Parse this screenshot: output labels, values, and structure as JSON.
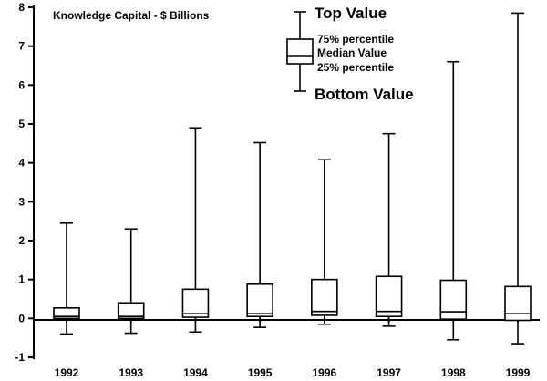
{
  "chart_data": {
    "type": "boxplot",
    "title": "Knowledge Capital - $ Billions",
    "xlabel": "",
    "ylabel": "",
    "ylim": [
      -1,
      8
    ],
    "yticks": [
      -1,
      0,
      1,
      2,
      3,
      4,
      5,
      6,
      7,
      8
    ],
    "grid": false,
    "legend_position": "top-right",
    "categories": [
      "1992",
      "1993",
      "1994",
      "1995",
      "1996",
      "1997",
      "1998",
      "1999"
    ],
    "boxes": [
      {
        "category": "1992",
        "min": -0.4,
        "q1": 0.0,
        "median": 0.05,
        "q3": 0.27,
        "max": 2.45
      },
      {
        "category": "1993",
        "min": -0.38,
        "q1": 0.0,
        "median": 0.05,
        "q3": 0.4,
        "max": 2.3
      },
      {
        "category": "1994",
        "min": -0.35,
        "q1": 0.03,
        "median": 0.12,
        "q3": 0.75,
        "max": 4.9
      },
      {
        "category": "1995",
        "min": -0.23,
        "q1": 0.05,
        "median": 0.12,
        "q3": 0.88,
        "max": 4.52
      },
      {
        "category": "1996",
        "min": -0.15,
        "q1": 0.08,
        "median": 0.18,
        "q3": 1.0,
        "max": 4.08
      },
      {
        "category": "1997",
        "min": -0.2,
        "q1": 0.05,
        "median": 0.18,
        "q3": 1.08,
        "max": 4.75
      },
      {
        "category": "1998",
        "min": -0.55,
        "q1": -0.02,
        "median": 0.17,
        "q3": 0.98,
        "max": 6.6
      },
      {
        "category": "1999",
        "min": -0.65,
        "q1": -0.05,
        "median": 0.12,
        "q3": 0.82,
        "max": 7.85
      }
    ],
    "legend": {
      "top": "Top Value",
      "q3": "75% percentile",
      "median": "Median Value",
      "q1": "25% percentile",
      "bottom": "Bottom Value"
    }
  }
}
